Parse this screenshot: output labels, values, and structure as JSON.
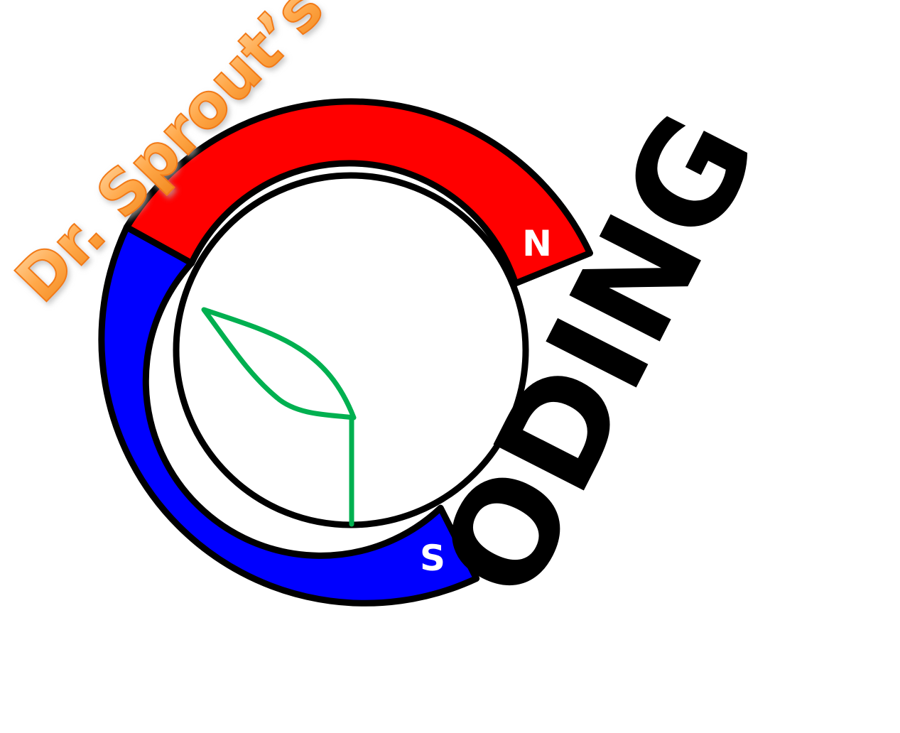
{
  "logo": {
    "brand": "Dr. Sprout’s",
    "word": "ODING",
    "north_label": "N",
    "south_label": "S"
  },
  "colors": {
    "north": "#ff0000",
    "south": "#0000ff",
    "outline": "#000000",
    "sprout": "#00b050",
    "brand_fill": "#ffa84a",
    "brand_stroke": "#f27a12",
    "background": "#ffffff"
  },
  "icons": {
    "magnet": "horseshoe-magnet-c",
    "sprout": "leaf-sprout"
  }
}
